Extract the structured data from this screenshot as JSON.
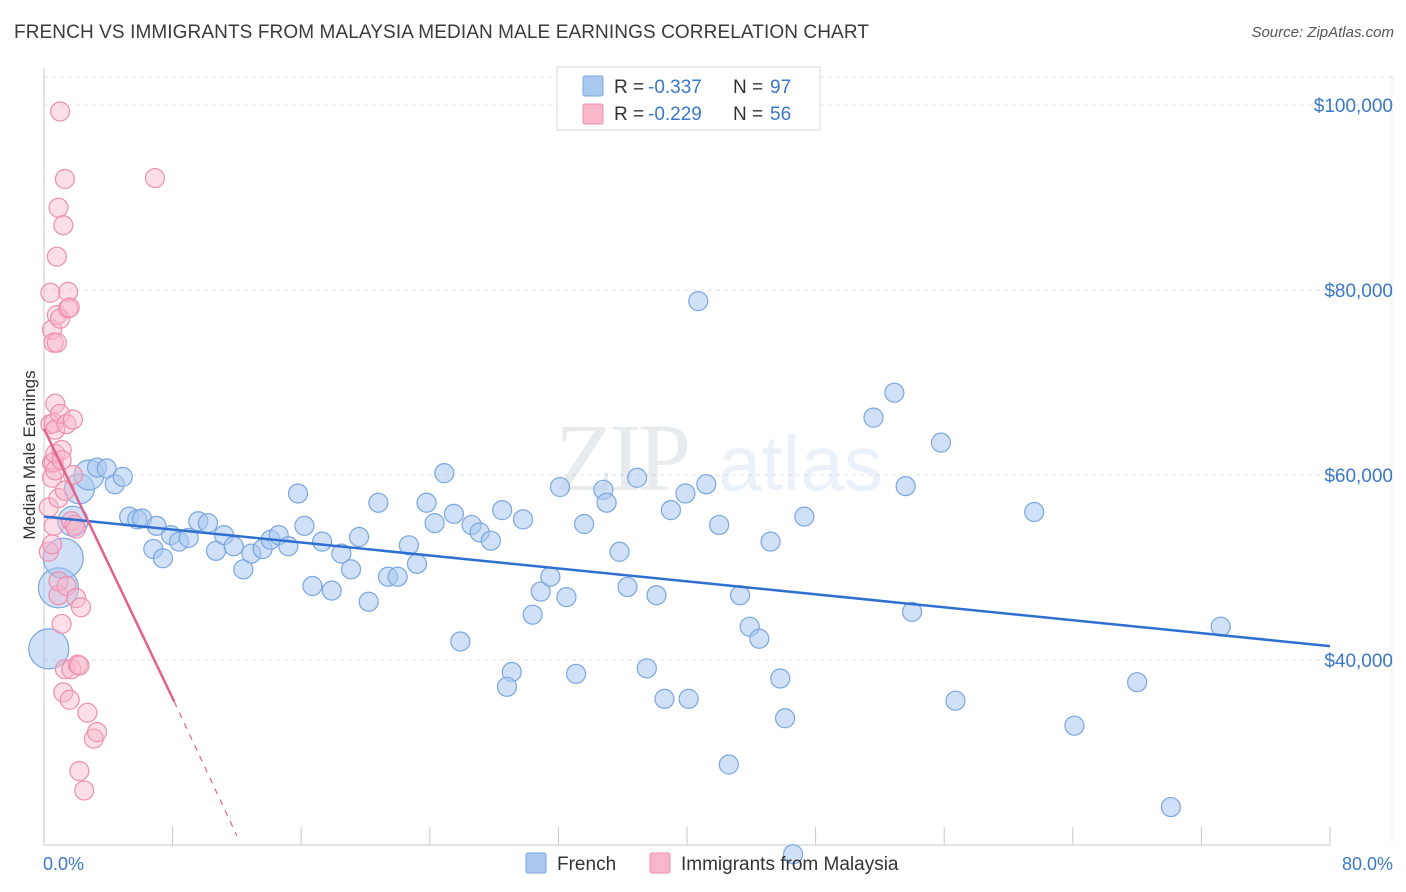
{
  "header": {
    "title": "FRENCH VS IMMIGRANTS FROM MALAYSIA MEDIAN MALE EARNINGS CORRELATION CHART",
    "source": "Source: ZipAtlas.com"
  },
  "watermark": {
    "zip": "ZIP",
    "atlas": "atlas"
  },
  "legend_top": {
    "rows": [
      {
        "r_label": "R =",
        "r_value": "-0.337",
        "n_label": "N =",
        "n_value": "97"
      },
      {
        "r_label": "R =",
        "r_value": "-0.229",
        "n_label": "N =",
        "n_value": "56"
      }
    ]
  },
  "legend_bottom": {
    "series1": "French",
    "series2": "Immigrants from Malaysia"
  },
  "colors": {
    "french_fill": "#a9c8f0",
    "french_stroke": "#7aa7e0",
    "french_line": "#2f6fcf",
    "malaysia_fill": "#f7b6ca",
    "malaysia_stroke": "#ee8fae",
    "malaysia_line": "#e0628f",
    "tick_text": "#3a78c9",
    "grid": "#dde1e6"
  },
  "chart_data": {
    "type": "scatter",
    "title": "FRENCH VS IMMIGRANTS FROM MALAYSIA MEDIAN MALE EARNINGS CORRELATION CHART",
    "xlabel": "",
    "ylabel": "Median Male Earnings",
    "xlim": [
      0,
      80
    ],
    "ylim": [
      20000,
      104000
    ],
    "x_tick_labels": [
      "0.0%",
      "80.0%"
    ],
    "y_ticks": [
      {
        "value": 40000,
        "label": "$40,000"
      },
      {
        "value": 60000,
        "label": "$60,000"
      },
      {
        "value": 80000,
        "label": "$80,000"
      },
      {
        "value": 100000,
        "label": "$100,000"
      }
    ],
    "grid": true,
    "series": [
      {
        "name": "French",
        "r": -0.337,
        "n": 97,
        "trend": {
          "x": [
            0,
            80
          ],
          "y": [
            55500,
            41500
          ]
        },
        "points": [
          [
            0.3,
            41200,
            3
          ],
          [
            0.9,
            47800,
            3
          ],
          [
            1.2,
            51000,
            3
          ],
          [
            1.8,
            55000,
            2
          ],
          [
            2.2,
            58500,
            2
          ],
          [
            2.8,
            60000,
            2
          ],
          [
            3.3,
            60800,
            1
          ],
          [
            3.9,
            60700,
            1
          ],
          [
            4.4,
            59000,
            1
          ],
          [
            4.9,
            59800,
            1
          ],
          [
            5.3,
            55500,
            1
          ],
          [
            5.8,
            55200,
            1
          ],
          [
            6.1,
            55300,
            1
          ],
          [
            6.8,
            52000,
            1
          ],
          [
            7.4,
            51000,
            1
          ],
          [
            7.9,
            53500,
            1
          ],
          [
            8.4,
            52800,
            1
          ],
          [
            9.0,
            53200,
            1
          ],
          [
            9.6,
            55000,
            1
          ],
          [
            10.2,
            54800,
            1
          ],
          [
            10.7,
            51800,
            1
          ],
          [
            11.2,
            53500,
            1
          ],
          [
            11.8,
            52300,
            1
          ],
          [
            12.4,
            49800,
            1
          ],
          [
            12.9,
            51500,
            1
          ],
          [
            13.6,
            52000,
            1
          ],
          [
            14.1,
            53000,
            1
          ],
          [
            14.6,
            53500,
            1
          ],
          [
            15.2,
            52300,
            1
          ],
          [
            15.8,
            58000,
            1
          ],
          [
            16.2,
            54500,
            1
          ],
          [
            16.7,
            48000,
            1
          ],
          [
            17.3,
            52800,
            1
          ],
          [
            17.9,
            47500,
            1
          ],
          [
            18.5,
            51500,
            1
          ],
          [
            19.1,
            49800,
            1
          ],
          [
            19.6,
            53300,
            1
          ],
          [
            20.2,
            46300,
            1
          ],
          [
            20.8,
            57000,
            1
          ],
          [
            21.4,
            49000,
            1
          ],
          [
            22.0,
            49000,
            1
          ],
          [
            22.7,
            52400,
            1
          ],
          [
            23.2,
            50400,
            1
          ],
          [
            23.8,
            57000,
            1
          ],
          [
            24.3,
            54800,
            1
          ],
          [
            24.9,
            60200,
            1
          ],
          [
            25.5,
            55800,
            1
          ],
          [
            25.9,
            42000,
            1
          ],
          [
            26.6,
            54600,
            1
          ],
          [
            27.1,
            53800,
            1
          ],
          [
            27.8,
            52900,
            1
          ],
          [
            28.5,
            56200,
            1
          ],
          [
            29.1,
            38700,
            1
          ],
          [
            28.8,
            37100,
            1
          ],
          [
            29.8,
            55200,
            1
          ],
          [
            30.4,
            44900,
            1
          ],
          [
            30.9,
            47400,
            1
          ],
          [
            31.5,
            49000,
            1
          ],
          [
            32.1,
            58700,
            1
          ],
          [
            32.5,
            46800,
            1
          ],
          [
            33.1,
            38500,
            1
          ],
          [
            33.6,
            54700,
            1
          ],
          [
            34.8,
            58400,
            1
          ],
          [
            35.0,
            57000,
            1
          ],
          [
            35.8,
            51700,
            1
          ],
          [
            36.3,
            47900,
            1
          ],
          [
            36.9,
            59700,
            1
          ],
          [
            37.5,
            39100,
            1
          ],
          [
            38.1,
            47000,
            1
          ],
          [
            38.6,
            35800,
            1
          ],
          [
            39.0,
            56200,
            1
          ],
          [
            39.9,
            58000,
            1
          ],
          [
            40.1,
            35800,
            1
          ],
          [
            40.7,
            78800,
            1
          ],
          [
            41.2,
            59000,
            1
          ],
          [
            42.0,
            54600,
            1
          ],
          [
            42.6,
            28700,
            1
          ],
          [
            43.3,
            47000,
            1
          ],
          [
            43.9,
            43600,
            1
          ],
          [
            44.5,
            42300,
            1
          ],
          [
            45.2,
            52800,
            1
          ],
          [
            45.8,
            38000,
            1
          ],
          [
            46.1,
            33700,
            1
          ],
          [
            46.6,
            19000,
            1
          ],
          [
            47.3,
            55500,
            1
          ],
          [
            51.6,
            66200,
            1
          ],
          [
            52.9,
            68900,
            1
          ],
          [
            53.6,
            58800,
            1
          ],
          [
            54.0,
            45200,
            1
          ],
          [
            55.8,
            63500,
            1
          ],
          [
            56.7,
            35600,
            1
          ],
          [
            61.6,
            56000,
            1
          ],
          [
            64.1,
            32900,
            1
          ],
          [
            68.0,
            37600,
            1
          ],
          [
            70.1,
            24100,
            1
          ],
          [
            73.2,
            43600,
            1
          ],
          [
            7.0,
            54500,
            1
          ]
        ]
      },
      {
        "name": "Immigrants from Malaysia",
        "r": -0.229,
        "n": 56,
        "trend": {
          "x": [
            0,
            8.1
          ],
          "y": [
            65000,
            35500
          ]
        },
        "trend_extension": {
          "x": [
            8.1,
            12.0
          ],
          "y": [
            35500,
            21000
          ]
        },
        "points": [
          [
            0.3,
            56500,
            1
          ],
          [
            0.3,
            51700,
            1
          ],
          [
            0.4,
            65500,
            1
          ],
          [
            0.4,
            79700,
            1
          ],
          [
            0.5,
            75700,
            1
          ],
          [
            0.5,
            61300,
            1
          ],
          [
            0.5,
            59700,
            1
          ],
          [
            0.6,
            74300,
            1
          ],
          [
            0.6,
            61400,
            1
          ],
          [
            0.6,
            65600,
            1
          ],
          [
            0.6,
            54500,
            1
          ],
          [
            0.7,
            67700,
            1
          ],
          [
            0.7,
            64900,
            1
          ],
          [
            0.7,
            62300,
            1
          ],
          [
            0.7,
            60500,
            1
          ],
          [
            0.8,
            83600,
            1
          ],
          [
            0.8,
            74300,
            1
          ],
          [
            0.8,
            77300,
            1
          ],
          [
            0.9,
            57500,
            1
          ],
          [
            0.9,
            47000,
            1
          ],
          [
            0.9,
            88900,
            1
          ],
          [
            0.9,
            48500,
            1
          ],
          [
            1.0,
            76900,
            1
          ],
          [
            1.0,
            66600,
            1
          ],
          [
            1.0,
            99300,
            1
          ],
          [
            1.1,
            62700,
            1
          ],
          [
            1.1,
            61600,
            1
          ],
          [
            1.1,
            43900,
            1
          ],
          [
            1.2,
            87000,
            1
          ],
          [
            1.2,
            36500,
            1
          ],
          [
            1.3,
            39000,
            1
          ],
          [
            1.3,
            92000,
            1
          ],
          [
            1.4,
            48000,
            1
          ],
          [
            1.4,
            65500,
            1
          ],
          [
            1.5,
            79800,
            1
          ],
          [
            1.5,
            78000,
            1
          ],
          [
            1.6,
            78100,
            1
          ],
          [
            1.6,
            35700,
            1
          ],
          [
            1.7,
            55000,
            1
          ],
          [
            1.7,
            39000,
            1
          ],
          [
            1.8,
            66000,
            1
          ],
          [
            1.8,
            60000,
            1
          ],
          [
            1.9,
            54600,
            1
          ],
          [
            2.0,
            54200,
            1
          ],
          [
            2.0,
            46700,
            1
          ],
          [
            2.1,
            39500,
            1
          ],
          [
            2.2,
            28000,
            1
          ],
          [
            2.2,
            39400,
            1
          ],
          [
            2.3,
            45700,
            1
          ],
          [
            2.5,
            25900,
            1
          ],
          [
            2.7,
            34300,
            1
          ],
          [
            3.1,
            31500,
            1
          ],
          [
            3.3,
            32200,
            1
          ],
          [
            6.9,
            92100,
            1
          ],
          [
            0.5,
            52500,
            1
          ],
          [
            1.3,
            58300,
            1
          ]
        ]
      }
    ]
  }
}
